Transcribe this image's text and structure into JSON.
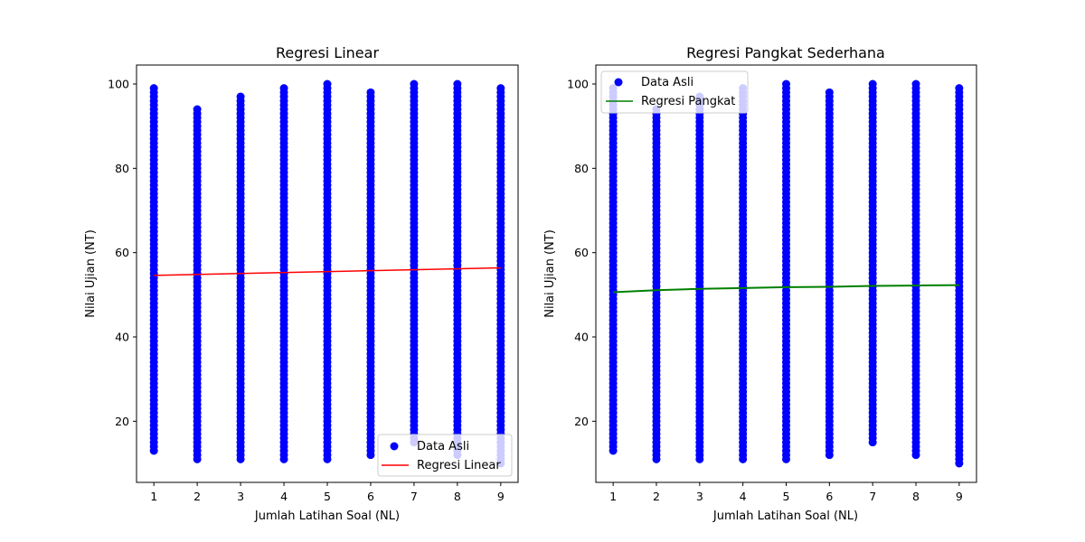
{
  "colors": {
    "points": "#0000ff",
    "linear_line": "#ff0000",
    "power_line": "#008000",
    "axes": "#000000",
    "legend_border": "#cccccc"
  },
  "chart_data": [
    {
      "type": "scatter",
      "title": "Regresi Linear",
      "xlabel": "Jumlah Latihan Soal (NL)",
      "ylabel": "Nilai Ujian (NT)",
      "xlim": [
        0.6,
        9.4
      ],
      "ylim": [
        5.5,
        104.5
      ],
      "xticks": [
        1,
        2,
        3,
        4,
        5,
        6,
        7,
        8,
        9
      ],
      "yticks": [
        20,
        40,
        60,
        80,
        100
      ],
      "grid": false,
      "legend_placement": "lower-right",
      "series": [
        {
          "name": "Data Asli",
          "kind": "scatter",
          "x": [
            1,
            2,
            3,
            4,
            5,
            6,
            7,
            8,
            9
          ],
          "y_range": [
            [
              13,
              99
            ],
            [
              11,
              94
            ],
            [
              11,
              97
            ],
            [
              11,
              99
            ],
            [
              11,
              100
            ],
            [
              12,
              98
            ],
            [
              15,
              100
            ],
            [
              12,
              100
            ],
            [
              10,
              99
            ]
          ]
        },
        {
          "name": "Regresi Linear",
          "kind": "line",
          "x": [
            1,
            9
          ],
          "y": [
            54.6,
            56.4
          ]
        }
      ]
    },
    {
      "type": "scatter",
      "title": "Regresi Pangkat Sederhana",
      "xlabel": "Jumlah Latihan Soal (NL)",
      "ylabel": "Nilai Ujian (NT)",
      "xlim": [
        0.6,
        9.4
      ],
      "ylim": [
        5.5,
        104.5
      ],
      "xticks": [
        1,
        2,
        3,
        4,
        5,
        6,
        7,
        8,
        9
      ],
      "yticks": [
        20,
        40,
        60,
        80,
        100
      ],
      "grid": false,
      "legend_placement": "upper-left",
      "series": [
        {
          "name": "Data Asli",
          "kind": "scatter",
          "x": [
            1,
            2,
            3,
            4,
            5,
            6,
            7,
            8,
            9
          ],
          "y_range": [
            [
              13,
              99
            ],
            [
              11,
              94
            ],
            [
              11,
              97
            ],
            [
              11,
              99
            ],
            [
              11,
              100
            ],
            [
              12,
              98
            ],
            [
              15,
              100
            ],
            [
              12,
              100
            ],
            [
              10,
              99
            ]
          ]
        },
        {
          "name": "Regresi Pangkat",
          "kind": "line",
          "x": [
            1,
            2,
            3,
            4,
            5,
            6,
            7,
            8,
            9
          ],
          "y": [
            50.6,
            51.1,
            51.4,
            51.6,
            51.8,
            51.9,
            52.1,
            52.2,
            52.3
          ]
        }
      ]
    }
  ]
}
